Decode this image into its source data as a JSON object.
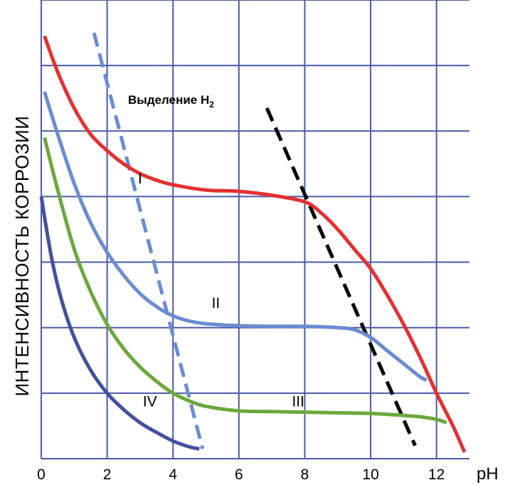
{
  "chart_data": {
    "type": "line",
    "title": "",
    "xlabel": "pH",
    "ylabel": "ИНТЕНСИВНОСТЬ КОРРОЗИИ",
    "xlim": [
      0,
      13
    ],
    "ylim": [
      0,
      7
    ],
    "x_ticks": [
      "0",
      "2",
      "4",
      "6",
      "8",
      "10",
      "12"
    ],
    "grid": true,
    "colors": {
      "grid": "#4a5aa8",
      "I": "#e53030",
      "II": "#6a8cd2",
      "III": "#6aa83c",
      "IV": "#4450a0",
      "dashed_left": "#6a8cd2",
      "dashed_right": "#000000"
    },
    "series": [
      {
        "name": "I",
        "label_at": [
          3,
          4.2
        ],
        "x": [
          0.1,
          0.5,
          1,
          1.5,
          2,
          2.5,
          3,
          3.5,
          4,
          5,
          6,
          7,
          8,
          8.5,
          9,
          9.5,
          10,
          10.5,
          11,
          11.5,
          12,
          12.5,
          12.85
        ],
        "y": [
          6.45,
          5.9,
          5.35,
          4.95,
          4.7,
          4.5,
          4.35,
          4.25,
          4.18,
          4.1,
          4.08,
          4.02,
          3.92,
          3.75,
          3.5,
          3.2,
          2.9,
          2.5,
          2.05,
          1.55,
          1.0,
          0.5,
          0.1
        ]
      },
      {
        "name": "II",
        "label_at": [
          5.3,
          2.3
        ],
        "x": [
          0.1,
          0.5,
          1,
          1.5,
          2,
          2.5,
          3,
          3.5,
          4,
          4.5,
          5,
          6,
          7,
          8,
          9,
          9.5,
          10,
          10.5,
          11,
          11.5,
          11.7
        ],
        "y": [
          5.6,
          4.95,
          4.2,
          3.6,
          3.15,
          2.8,
          2.52,
          2.32,
          2.18,
          2.1,
          2.06,
          2.03,
          2.02,
          2.02,
          2.0,
          1.97,
          1.85,
          1.65,
          1.45,
          1.25,
          1.2
        ]
      },
      {
        "name": "III",
        "label_at": [
          7.8,
          0.8
        ],
        "x": [
          0.1,
          0.5,
          1,
          1.5,
          2,
          2.5,
          3,
          3.5,
          4,
          4.5,
          5,
          6,
          7,
          8,
          9,
          10,
          11,
          11.5,
          12,
          12.3
        ],
        "y": [
          4.9,
          4.1,
          3.2,
          2.55,
          2.05,
          1.68,
          1.4,
          1.18,
          1.0,
          0.88,
          0.8,
          0.73,
          0.72,
          0.71,
          0.7,
          0.69,
          0.66,
          0.64,
          0.6,
          0.55
        ]
      },
      {
        "name": "IV",
        "label_at": [
          3.3,
          0.8
        ],
        "x": [
          0.0,
          0.3,
          0.6,
          1,
          1.5,
          2,
          2.5,
          3,
          3.5,
          4,
          4.5,
          4.8
        ],
        "y": [
          4.0,
          3.1,
          2.45,
          1.85,
          1.35,
          1.0,
          0.75,
          0.55,
          0.4,
          0.27,
          0.18,
          0.15
        ]
      },
      {
        "name": "",
        "style": "dashed",
        "x": [
          1.6,
          4.9
        ],
        "y": [
          6.5,
          0.15
        ]
      },
      {
        "name": "",
        "style": "dashed",
        "x": [
          6.85,
          11.35
        ],
        "y": [
          5.35,
          0.2
        ]
      }
    ],
    "annotations": [
      {
        "text": "Выделение H",
        "subscript": "2",
        "at": [
          0.8,
          5.5
        ]
      }
    ]
  }
}
